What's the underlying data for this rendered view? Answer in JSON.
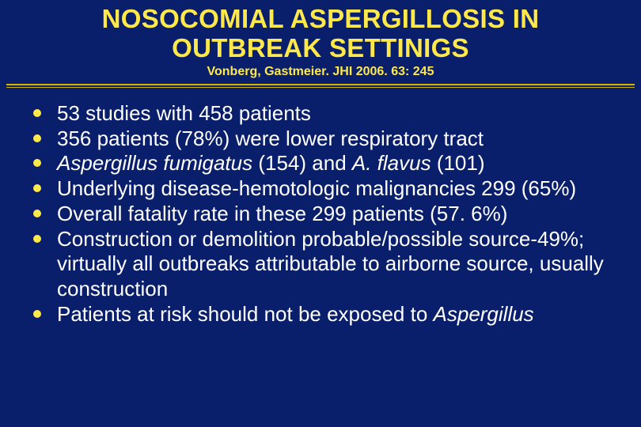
{
  "colors": {
    "background": "#0a1f6b",
    "title_text": "#ffe94a",
    "body_text": "#ffffff",
    "bullet_color": "#ffe94a",
    "divider_color": "#d8b300"
  },
  "typography": {
    "title_fontsize": 33,
    "title_weight": "bold",
    "citation_fontsize": 16,
    "citation_weight": "bold",
    "body_fontsize": 26,
    "font_family": "Arial"
  },
  "title": {
    "line1": "NOSOCOMIAL ASPERGILLOSIS IN",
    "line2": "OUTBREAK SETTINIGS"
  },
  "citation": "Vonberg, Gastmeier. JHI 2006. 63: 245",
  "bullets": [
    {
      "segments": [
        {
          "text": "53 studies with 458 patients",
          "italic": false
        }
      ]
    },
    {
      "segments": [
        {
          "text": "356 patients (78%) were lower respiratory tract",
          "italic": false
        }
      ]
    },
    {
      "segments": [
        {
          "text": "Aspergillus fumigatus",
          "italic": true
        },
        {
          "text": " (154) and ",
          "italic": false
        },
        {
          "text": "A. flavus",
          "italic": true
        },
        {
          "text": " (101)",
          "italic": false
        }
      ]
    },
    {
      "segments": [
        {
          "text": "Underlying disease-hemotologic malignancies 299 (65%)",
          "italic": false
        }
      ]
    },
    {
      "segments": [
        {
          "text": "Overall fatality rate in these 299 patients (57. 6%)",
          "italic": false
        }
      ]
    },
    {
      "segments": [
        {
          "text": "Construction or demolition probable/possible source-49%; virtually all outbreaks attributable to airborne source, usually construction",
          "italic": false
        }
      ]
    },
    {
      "segments": [
        {
          "text": "Patients at risk should not be exposed to ",
          "italic": false
        },
        {
          "text": "Aspergillus",
          "italic": true
        }
      ]
    }
  ]
}
